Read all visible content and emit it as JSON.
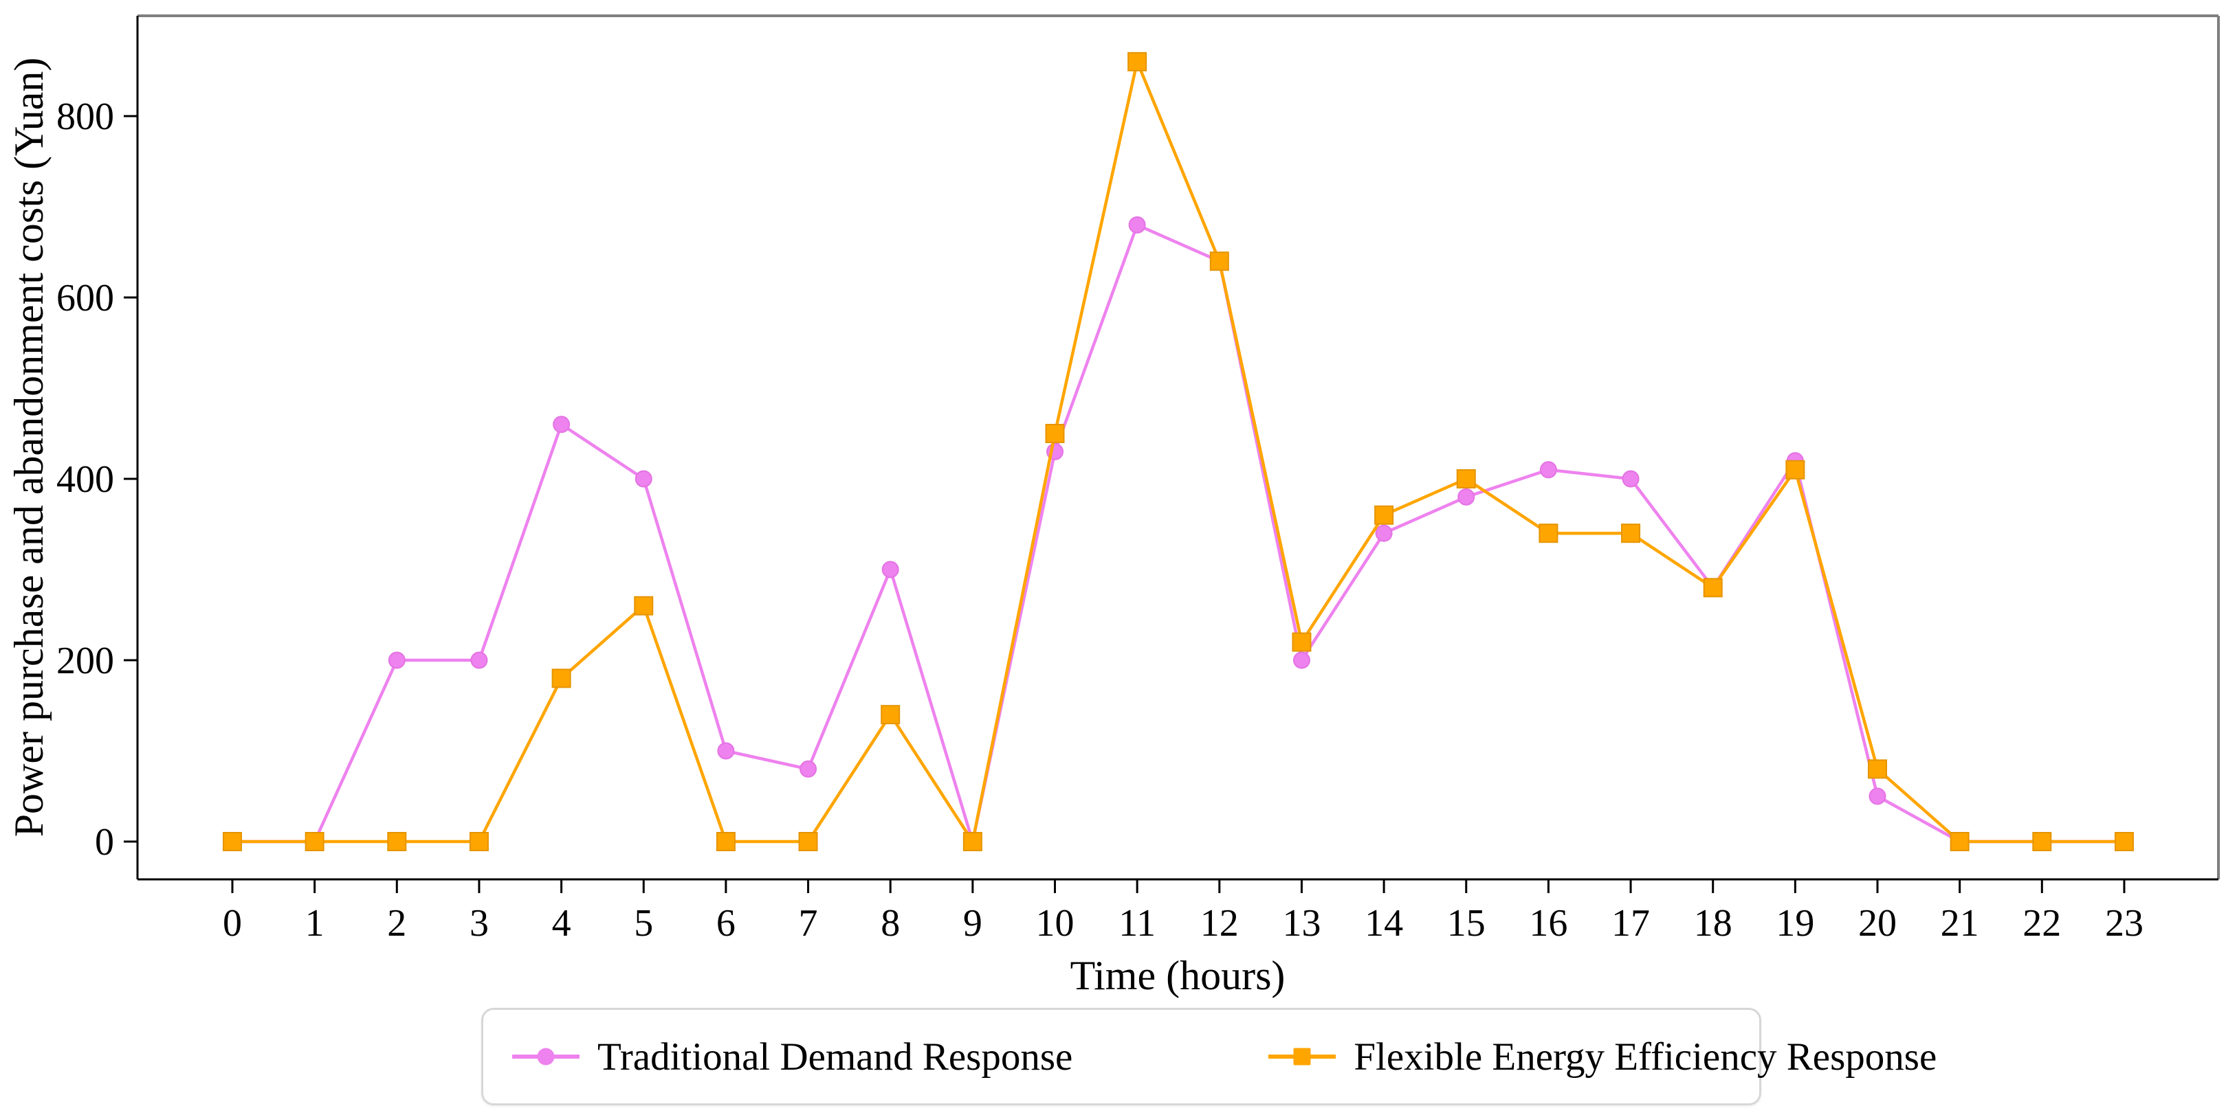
{
  "chart_data": {
    "type": "line",
    "title": "",
    "xlabel": "Time (hours)",
    "ylabel": "Power purchase and abandonment costs (Yuan)",
    "x": [
      0,
      1,
      2,
      3,
      4,
      5,
      6,
      7,
      8,
      9,
      10,
      11,
      12,
      13,
      14,
      15,
      16,
      17,
      18,
      19,
      20,
      21,
      22,
      23
    ],
    "x_tick_labels": [
      "0",
      "1",
      "2",
      "3",
      "4",
      "5",
      "6",
      "7",
      "8",
      "9",
      "10",
      "11",
      "12",
      "13",
      "14",
      "15",
      "16",
      "17",
      "18",
      "19",
      "20",
      "21",
      "22",
      "23"
    ],
    "y_ticks": [
      0,
      200,
      400,
      600,
      800
    ],
    "y_tick_labels": [
      "0",
      "200",
      "400",
      "600",
      "800"
    ],
    "xlim": [
      -1.15,
      24.15
    ],
    "ylim": [
      -42,
      910
    ],
    "grid": false,
    "legend_position": "lower center outside",
    "series": [
      {
        "name": "Traditional Demand Response",
        "color": "#EE82EE",
        "marker": "circle",
        "marker_edge": "#E473E4",
        "values": [
          0,
          0,
          200,
          200,
          460,
          400,
          100,
          80,
          300,
          0,
          430,
          680,
          640,
          200,
          340,
          380,
          410,
          400,
          280,
          420,
          50,
          0,
          0,
          0
        ]
      },
      {
        "name": "Flexible Energy Efficiency Response",
        "color": "#FFA500",
        "marker": "square",
        "marker_edge": "#E59400",
        "values": [
          0,
          0,
          0,
          0,
          180,
          260,
          0,
          0,
          140,
          0,
          450,
          860,
          640,
          220,
          360,
          400,
          340,
          340,
          280,
          410,
          80,
          0,
          0,
          0
        ]
      }
    ],
    "colors": {
      "spine_top_right": "#7f7f7f",
      "spine_left_bottom": "#000000",
      "legend_border": "#d7d7d7",
      "background": "#ffffff"
    }
  }
}
